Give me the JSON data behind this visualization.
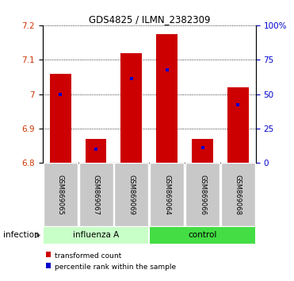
{
  "title": "GDS4825 / ILMN_2382309",
  "samples": [
    "GSM869065",
    "GSM869067",
    "GSM869069",
    "GSM869064",
    "GSM869066",
    "GSM869068"
  ],
  "bar_base": 6.8,
  "transformed_counts": [
    7.06,
    6.87,
    7.12,
    7.175,
    6.87,
    7.02
  ],
  "percentile_positions": [
    7.0,
    6.84,
    7.045,
    7.07,
    6.845,
    6.97
  ],
  "bar_color": "#cc0000",
  "percentile_color": "#0000cc",
  "ylim_left": [
    6.8,
    7.2
  ],
  "ylim_right": [
    0,
    100
  ],
  "yticks_left": [
    6.8,
    6.9,
    7.0,
    7.1,
    7.2
  ],
  "yticks_right": [
    0,
    25,
    50,
    75,
    100
  ],
  "ytick_labels_right": [
    "0",
    "25",
    "50",
    "75",
    "100%"
  ],
  "ytick_labels_left": [
    "6.8",
    "6.9",
    "7",
    "7.1",
    "7.2"
  ],
  "ylabel_left_color": "#cc3300",
  "ylabel_right_color": "#0000cc",
  "background_plot": "#ffffff",
  "background_xlabel": "#c8c8c8",
  "background_group_flu": "#c8ffc8",
  "background_group_ctrl": "#44dd44",
  "infection_label": "infection",
  "legend_red_label": "transformed count",
  "legend_blue_label": "percentile rank within the sample",
  "bar_width": 0.6,
  "n_samples": 6,
  "group_flu_indices": [
    0,
    1,
    2
  ],
  "group_ctrl_indices": [
    3,
    4,
    5
  ]
}
